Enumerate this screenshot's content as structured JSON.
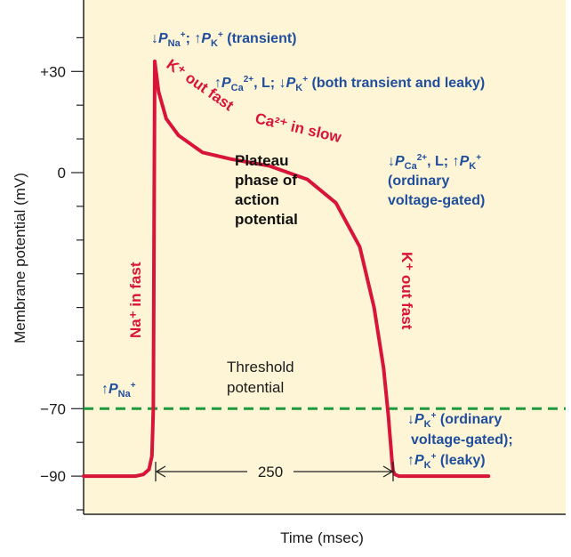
{
  "chart_data": {
    "type": "line",
    "xlabel": "Time (msec)",
    "ylabel": "Membrane potential (mV)",
    "y_tick_labels": [
      "+30",
      "0",
      "−70",
      "−90"
    ],
    "y_ticks": [
      30,
      0,
      -70,
      -90
    ],
    "ylim": [
      -100,
      50
    ],
    "colors": {
      "trace": "#d8143a",
      "threshold": "#1e9a3c",
      "axis_bg": "#fdf5d6",
      "annotation": "#1f4e9c"
    },
    "series": [
      {
        "x": [
          -80,
          -20,
          -12,
          -6,
          -3,
          -1.5,
          0,
          4,
          12,
          25,
          50,
          80,
          120,
          160,
          190,
          215,
          230,
          240,
          245,
          249,
          250,
          252,
          256,
          262,
          275,
          300,
          350
        ],
        "y": [
          -90,
          -90,
          -89.5,
          -88,
          -84,
          -70,
          33,
          24,
          16,
          11,
          6,
          4,
          2,
          -2,
          -9,
          -22,
          -40,
          -58,
          -72,
          -86,
          -88.5,
          -89.5,
          -90,
          -90,
          -90,
          -90,
          -90
        ]
      }
    ],
    "threshold": {
      "y": -70,
      "label_line1": "Threshold",
      "label_line2": "potential"
    },
    "duration_marker": {
      "x_start": 0,
      "x_end": 250,
      "label": "250"
    },
    "annotations": {
      "na_in_fast": "Na⁺ in fast",
      "k_out_fast_top": "K⁺ out fast",
      "ca_in_slow": "Ca²⁺ in slow",
      "k_out_fast_right": "K⁺ out fast",
      "plateau": [
        "Plateau",
        "phase of",
        "action",
        "potential"
      ],
      "p_na_rise": "P",
      "p_na_rise_sub": "Na",
      "p_na_rise_sup": "+",
      "top_line": {
        "p1": "P",
        "p1_sub": "Na",
        "p1_sup": "+",
        "sep": "; ",
        "p2": "P",
        "p2_sub": "K",
        "p2_sup": "+",
        "tail": " (transient)"
      },
      "second_line": {
        "p1": "P",
        "p1_sub": "Ca",
        "p1_sup": "2+",
        "mid": ", L; ",
        "p2": "P",
        "p2_sub": "K",
        "p2_sup": "+",
        "tail": " (both transient and leaky)"
      },
      "right_block": {
        "p1": "P",
        "p1_sub": "Ca",
        "p1_sup": "2+",
        "mid": ", L; ",
        "p2": "P",
        "p2_sub": "K",
        "p2_sup": "+",
        "line2": "(ordinary",
        "line3": "voltage-gated)"
      },
      "bottom_block": {
        "p1": "P",
        "p1_sub": "K",
        "p1_sup": "+",
        "line1_tail": " (ordinary",
        "line2": "voltage-gated);",
        "p2": "P",
        "p2_sub": "K",
        "p2_sup": "+",
        "line3_tail": " (leaky)"
      }
    }
  }
}
